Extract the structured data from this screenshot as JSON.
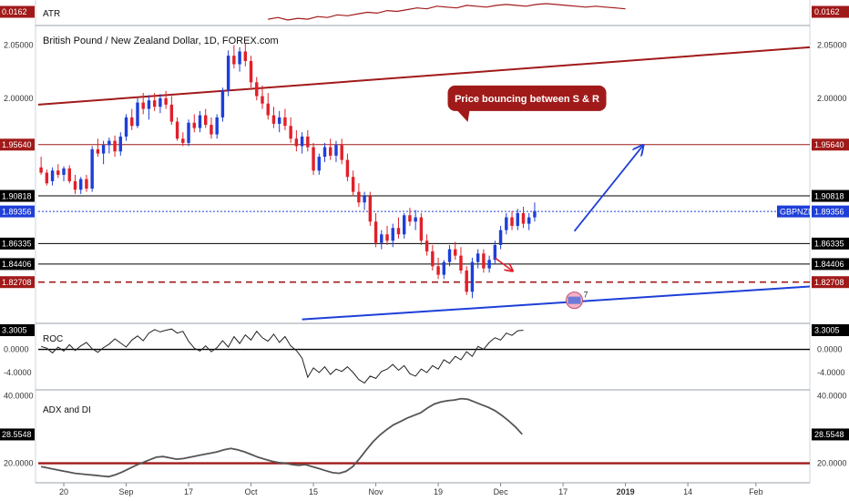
{
  "colors": {
    "up": "#1e3fd8",
    "down": "#e0202a",
    "resistance": "#a11a1a",
    "support": "#1e3fd8",
    "level": "#000000",
    "indicator": "#555555",
    "tag_dark": "#000000",
    "tag_red": "#a11a1a",
    "tag_blue": "#1e3fd8",
    "callout": "#a11a1a"
  },
  "chart_data": [
    {
      "type": "candlestick",
      "title": "British Pound / New Zealand Dollar, 1D, FOREX.com",
      "symbol": "GBPNZD",
      "ylim": [
        1.79,
        2.065
      ],
      "yticks": [
        {
          "value": 2.05,
          "label": "2.05000"
        },
        {
          "value": 2.0,
          "label": "2.00000"
        },
        {
          "value": 1.9564,
          "label": "1.95640",
          "tag": "red"
        },
        {
          "value": 1.90818,
          "label": "1.90818",
          "tag": "dark"
        },
        {
          "value": 1.89356,
          "label": "1.89356",
          "tag": "blue"
        },
        {
          "value": 1.86335,
          "label": "1.86335",
          "tag": "dark"
        },
        {
          "value": 1.84406,
          "label": "1.84406",
          "tag": "dark"
        },
        {
          "value": 1.82708,
          "label": "1.82708",
          "tag": "red"
        }
      ],
      "levels": [
        {
          "value": 1.9564,
          "style": "solid",
          "color": "resistance"
        },
        {
          "value": 1.90818,
          "style": "solid",
          "color": "level"
        },
        {
          "value": 1.89356,
          "style": "dotted",
          "color": "support"
        },
        {
          "value": 1.86335,
          "style": "solid",
          "color": "level"
        },
        {
          "value": 1.84406,
          "style": "solid",
          "color": "level"
        },
        {
          "value": 1.82708,
          "style": "dashed",
          "color": "resistance"
        }
      ],
      "candles": [
        [
          1.935,
          1.945,
          1.928,
          1.93
        ],
        [
          1.93,
          1.933,
          1.918,
          1.92
        ],
        [
          1.922,
          1.935,
          1.918,
          1.932
        ],
        [
          1.932,
          1.938,
          1.925,
          1.928
        ],
        [
          1.928,
          1.936,
          1.922,
          1.934
        ],
        [
          1.934,
          1.937,
          1.92,
          1.922
        ],
        [
          1.922,
          1.928,
          1.91,
          1.914
        ],
        [
          1.914,
          1.926,
          1.91,
          1.924
        ],
        [
          1.924,
          1.928,
          1.912,
          1.915
        ],
        [
          1.915,
          1.955,
          1.912,
          1.952
        ],
        [
          1.952,
          1.962,
          1.945,
          1.948
        ],
        [
          1.948,
          1.96,
          1.938,
          1.956
        ],
        [
          1.956,
          1.963,
          1.948,
          1.96
        ],
        [
          1.96,
          1.965,
          1.945,
          1.95
        ],
        [
          1.95,
          1.968,
          1.946,
          1.964
        ],
        [
          1.964,
          1.985,
          1.96,
          1.982
        ],
        [
          1.982,
          1.99,
          1.97,
          1.974
        ],
        [
          1.974,
          2.0,
          1.972,
          1.996
        ],
        [
          1.996,
          2.005,
          1.985,
          1.99
        ],
        [
          1.99,
          2.003,
          1.98,
          1.998
        ],
        [
          1.998,
          2.005,
          1.988,
          1.992
        ],
        [
          1.992,
          2.004,
          1.986,
          2.0
        ],
        [
          2.0,
          2.007,
          1.99,
          1.994
        ],
        [
          1.994,
          2.002,
          1.975,
          1.978
        ],
        [
          1.978,
          1.982,
          1.96,
          1.962
        ],
        [
          1.962,
          1.968,
          1.955,
          1.958
        ],
        [
          1.958,
          1.98,
          1.955,
          1.977
        ],
        [
          1.977,
          1.985,
          1.968,
          1.972
        ],
        [
          1.972,
          1.988,
          1.968,
          1.984
        ],
        [
          1.984,
          1.99,
          1.972,
          1.975
        ],
        [
          1.975,
          1.982,
          1.962,
          1.966
        ],
        [
          1.966,
          1.985,
          1.962,
          1.982
        ],
        [
          1.982,
          2.01,
          1.978,
          2.007
        ],
        [
          2.007,
          2.045,
          2.002,
          2.04
        ],
        [
          2.04,
          2.05,
          2.028,
          2.032
        ],
        [
          2.032,
          2.048,
          2.025,
          2.044
        ],
        [
          2.044,
          2.052,
          2.03,
          2.035
        ],
        [
          2.035,
          2.04,
          2.01,
          2.015
        ],
        [
          2.015,
          2.02,
          1.998,
          2.002
        ],
        [
          2.002,
          2.012,
          1.99,
          1.995
        ],
        [
          1.995,
          2.005,
          1.98,
          1.984
        ],
        [
          1.984,
          1.992,
          1.972,
          1.976
        ],
        [
          1.976,
          1.988,
          1.968,
          1.982
        ],
        [
          1.982,
          1.99,
          1.97,
          1.974
        ],
        [
          1.974,
          1.982,
          1.958,
          1.962
        ],
        [
          1.962,
          1.97,
          1.95,
          1.955
        ],
        [
          1.955,
          1.968,
          1.948,
          1.964
        ],
        [
          1.964,
          1.97,
          1.95,
          1.954
        ],
        [
          1.954,
          1.958,
          1.928,
          1.932
        ],
        [
          1.932,
          1.948,
          1.928,
          1.945
        ],
        [
          1.945,
          1.958,
          1.94,
          1.954
        ],
        [
          1.954,
          1.962,
          1.942,
          1.946
        ],
        [
          1.946,
          1.96,
          1.94,
          1.956
        ],
        [
          1.956,
          1.962,
          1.938,
          1.942
        ],
        [
          1.942,
          1.948,
          1.922,
          1.926
        ],
        [
          1.926,
          1.932,
          1.908,
          1.912
        ],
        [
          1.912,
          1.92,
          1.898,
          1.902
        ],
        [
          1.902,
          1.912,
          1.895,
          1.908
        ],
        [
          1.908,
          1.912,
          1.88,
          1.884
        ],
        [
          1.884,
          1.892,
          1.86,
          1.864
        ],
        [
          1.864,
          1.876,
          1.858,
          1.872
        ],
        [
          1.872,
          1.88,
          1.862,
          1.866
        ],
        [
          1.866,
          1.882,
          1.86,
          1.878
        ],
        [
          1.878,
          1.888,
          1.868,
          1.872
        ],
        [
          1.872,
          1.892,
          1.868,
          1.89
        ],
        [
          1.89,
          1.897,
          1.88,
          1.884
        ],
        [
          1.884,
          1.895,
          1.876,
          1.888
        ],
        [
          1.888,
          1.892,
          1.862,
          1.866
        ],
        [
          1.866,
          1.872,
          1.852,
          1.856
        ],
        [
          1.856,
          1.862,
          1.838,
          1.842
        ],
        [
          1.842,
          1.85,
          1.83,
          1.834
        ],
        [
          1.834,
          1.848,
          1.83,
          1.846
        ],
        [
          1.846,
          1.862,
          1.842,
          1.858
        ],
        [
          1.858,
          1.865,
          1.848,
          1.852
        ],
        [
          1.852,
          1.86,
          1.835,
          1.838
        ],
        [
          1.838,
          1.842,
          1.815,
          1.818
        ],
        [
          1.818,
          1.85,
          1.812,
          1.846
        ],
        [
          1.846,
          1.858,
          1.84,
          1.854
        ],
        [
          1.854,
          1.858,
          1.836,
          1.84
        ],
        [
          1.84,
          1.852,
          1.836,
          1.848
        ],
        [
          1.848,
          1.866,
          1.844,
          1.862
        ],
        [
          1.862,
          1.88,
          1.858,
          1.876
        ],
        [
          1.876,
          1.892,
          1.872,
          1.888
        ],
        [
          1.888,
          1.894,
          1.876,
          1.88
        ],
        [
          1.88,
          1.896,
          1.876,
          1.892
        ],
        [
          1.892,
          1.898,
          1.878,
          1.882
        ],
        [
          1.882,
          1.892,
          1.876,
          1.888
        ],
        [
          1.888,
          1.902,
          1.884,
          1.894
        ]
      ],
      "resistance_line": {
        "from": [
          0,
          1.994
        ],
        "to": [
          130,
          2.048
        ]
      },
      "support_line": {
        "from": [
          46,
          1.792
        ],
        "to": [
          130,
          1.823
        ]
      },
      "projection_arrow": {
        "from": [
          94,
          1.875
        ],
        "to": [
          106,
          1.955
        ]
      },
      "small_arrow": {
        "from": [
          80,
          1.85
        ],
        "to": [
          83,
          1.838
        ]
      },
      "callout": {
        "text": "Price bouncing between S & R",
        "at": [
          72,
          2.0
        ]
      },
      "badge": {
        "text": "7",
        "at": [
          94,
          1.81
        ]
      }
    },
    {
      "type": "line",
      "name": "ATR",
      "value_tag": "0.0162",
      "values": [
        0.015,
        0.0152,
        0.0149,
        0.0151,
        0.015,
        0.0153,
        0.0152,
        0.0155,
        0.0154,
        0.0156,
        0.0158,
        0.0157,
        0.016,
        0.0159,
        0.0161,
        0.0163,
        0.0162,
        0.0165,
        0.0164,
        0.0163,
        0.0166,
        0.0165,
        0.0164,
        0.0166,
        0.0167,
        0.0166,
        0.0165,
        0.0167,
        0.0168,
        0.0167,
        0.0166,
        0.0165,
        0.0164,
        0.0165,
        0.0164,
        0.0163,
        0.0162
      ]
    },
    {
      "type": "line",
      "name": "ROC",
      "value_tag": "3.3005",
      "yticks": [
        {
          "value": 3.3005,
          "label": "3.3005",
          "tag": "dark"
        },
        {
          "value": 0,
          "label": "0.0000"
        },
        {
          "value": -4,
          "label": "-4.0000"
        }
      ],
      "ylim": [
        -6.5,
        4.0
      ],
      "values": [
        0.5,
        0.2,
        -0.6,
        0.4,
        -0.3,
        0.8,
        -0.2,
        0.6,
        1.2,
        0.1,
        -0.5,
        0.3,
        0.9,
        1.8,
        1.1,
        0.4,
        1.6,
        2.3,
        1.5,
        2.8,
        3.4,
        3.0,
        3.3,
        3.5,
        2.8,
        3.1,
        1.4,
        0.2,
        -0.3,
        0.6,
        -0.4,
        0.3,
        1.5,
        0.4,
        2.2,
        1.0,
        2.5,
        1.6,
        3.1,
        2.0,
        1.4,
        2.6,
        1.2,
        2.2,
        0.6,
        -0.2,
        -1.5,
        -4.8,
        -3.2,
        -4.0,
        -3.0,
        -4.3,
        -3.4,
        -3.8,
        -3.0,
        -4.0,
        -5.2,
        -5.8,
        -4.6,
        -5.0,
        -3.8,
        -3.4,
        -2.6,
        -3.6,
        -2.8,
        -4.2,
        -4.6,
        -3.4,
        -4.0,
        -2.8,
        -3.4,
        -1.8,
        -2.4,
        -1.2,
        -1.8,
        -0.4,
        -1.2,
        0.5,
        0.0,
        1.2,
        2.0,
        1.6,
        2.8,
        2.4,
        3.2,
        3.3
      ]
    },
    {
      "type": "line",
      "name": "ADX and DI",
      "value_tag": "28.5548",
      "yticks": [
        {
          "value": 40,
          "label": "40.0000"
        },
        {
          "value": 28.5548,
          "label": "28.5548",
          "tag": "dark"
        },
        {
          "value": 20,
          "label": "20.0000"
        }
      ],
      "ylim": [
        15,
        41
      ],
      "reference_line": 20,
      "values": [
        19.0,
        18.6,
        18.2,
        17.8,
        17.4,
        17.0,
        16.8,
        16.6,
        16.4,
        16.2,
        16.0,
        16.6,
        17.4,
        18.4,
        19.4,
        20.2,
        21.0,
        21.8,
        22.0,
        21.6,
        21.2,
        21.4,
        21.8,
        22.2,
        22.6,
        23.0,
        23.4,
        24.0,
        24.4,
        24.0,
        23.4,
        22.6,
        21.8,
        21.2,
        20.6,
        20.2,
        20.0,
        19.6,
        19.4,
        19.6,
        19.0,
        18.4,
        17.8,
        17.2,
        17.0,
        17.6,
        19.0,
        21.4,
        24.0,
        26.4,
        28.4,
        30.0,
        31.4,
        32.4,
        33.4,
        34.2,
        35.0,
        36.4,
        37.6,
        38.2,
        38.6,
        38.8,
        39.2,
        39.0,
        38.2,
        37.4,
        36.6,
        35.6,
        34.2,
        32.6,
        30.8,
        28.6
      ]
    }
  ],
  "x_axis": {
    "ticks": [
      {
        "index": 4,
        "label": "20"
      },
      {
        "index": 15,
        "label": "Sep"
      },
      {
        "index": 26,
        "label": "17"
      },
      {
        "index": 37,
        "label": "Oct"
      },
      {
        "index": 48,
        "label": "15"
      },
      {
        "index": 59,
        "label": "Nov"
      },
      {
        "index": 70,
        "label": "19"
      },
      {
        "index": 81,
        "label": "Dec"
      },
      {
        "index": 92,
        "label": "17"
      },
      {
        "index": 103,
        "label": "2019",
        "bold": true
      },
      {
        "index": 114,
        "label": "14"
      },
      {
        "index": 126,
        "label": "Feb"
      }
    ],
    "total_slots": 136
  }
}
